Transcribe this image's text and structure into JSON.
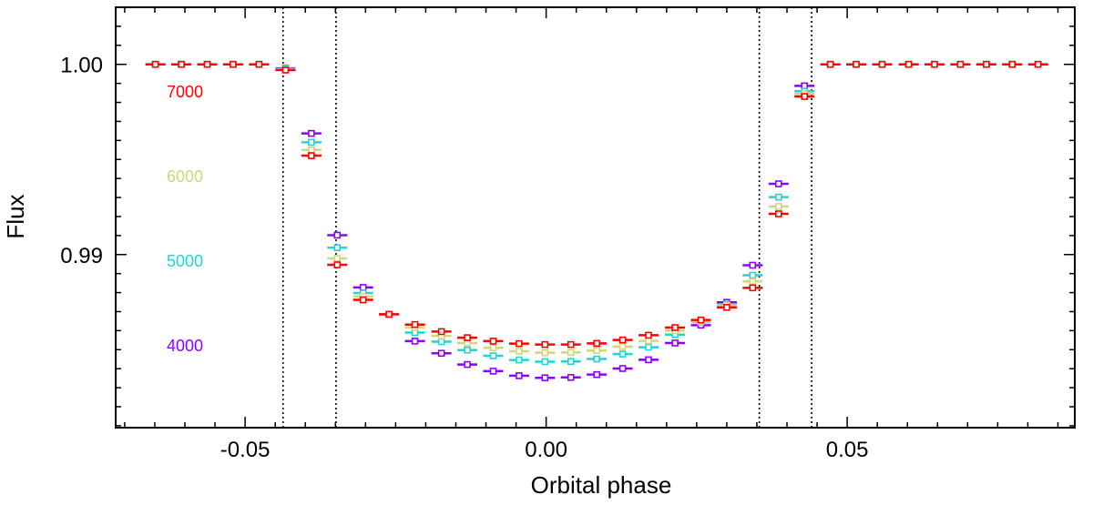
{
  "chart_data": {
    "type": "scatter",
    "title": "",
    "xlabel": "Orbital phase",
    "ylabel": "Flux",
    "xlim": [
      -0.0715,
      0.0878
    ],
    "ylim": [
      0.9809,
      1.003
    ],
    "xticks": [
      {
        "value": -0.05,
        "label": "-0.05"
      },
      {
        "value": 0.0,
        "label": "0.00"
      },
      {
        "value": 0.05,
        "label": "0.05"
      }
    ],
    "yticks": [
      {
        "value": 1.0,
        "label": "1.00"
      },
      {
        "value": 0.99,
        "label": "0.99"
      }
    ],
    "vlines": [
      -0.0437,
      -0.0349,
      0.0354,
      0.0441
    ],
    "x": [
      -0.0649,
      -0.0606,
      -0.0563,
      -0.052,
      -0.0477,
      -0.0433,
      -0.039,
      -0.0347,
      -0.0304,
      -0.0261,
      -0.0218,
      -0.0174,
      -0.0131,
      -0.0088,
      -0.0045,
      -0.0002,
      0.0041,
      0.0084,
      0.0127,
      0.017,
      0.0214,
      0.0257,
      0.03,
      0.0343,
      0.0386,
      0.0429,
      0.0472,
      0.0515,
      0.0558,
      0.0602,
      0.0645,
      0.0688,
      0.0731,
      0.0774,
      0.0817
    ],
    "series": [
      {
        "name": "4000",
        "color": "#8b00ff",
        "y": [
          1.0,
          1.0,
          1.0,
          1.0,
          1.0,
          0.99979,
          0.99637,
          0.99102,
          0.98827,
          0.98686,
          0.98545,
          0.98481,
          0.98422,
          0.98387,
          0.98363,
          0.98352,
          0.98354,
          0.98369,
          0.98401,
          0.98447,
          0.98535,
          0.98629,
          0.98749,
          0.98944,
          0.99372,
          0.99887,
          1.0,
          1.0,
          1.0,
          1.0,
          1.0,
          1.0,
          1.0,
          1.0,
          1.0
        ]
      },
      {
        "name": "5000",
        "color": "#22d3d3",
        "y": [
          1.0,
          1.0,
          1.0,
          1.0,
          1.0,
          0.99976,
          0.9959,
          0.99036,
          0.98798,
          0.98686,
          0.9859,
          0.98542,
          0.98498,
          0.98468,
          0.98446,
          0.98437,
          0.98438,
          0.98451,
          0.98477,
          0.98513,
          0.98579,
          0.98645,
          0.98739,
          0.98891,
          0.99302,
          0.99859,
          1.0,
          1.0,
          1.0,
          1.0,
          1.0,
          1.0,
          1.0,
          1.0,
          1.0
        ]
      },
      {
        "name": "6000",
        "color": "#d4d47a",
        "y": [
          1.0,
          1.0,
          1.0,
          1.0,
          1.0,
          0.99973,
          0.9955,
          0.9898,
          0.9878,
          0.98686,
          0.98617,
          0.98572,
          0.98535,
          0.9851,
          0.98492,
          0.98484,
          0.98485,
          0.98495,
          0.98516,
          0.98546,
          0.986,
          0.98648,
          0.98733,
          0.98859,
          0.99253,
          0.99845,
          1.0,
          1.0,
          1.0,
          1.0,
          1.0,
          1.0,
          1.0,
          1.0,
          1.0
        ]
      },
      {
        "name": "7000",
        "color": "#ff0000",
        "y": [
          1.0,
          1.0,
          1.0,
          1.0,
          1.0,
          0.9997,
          0.9952,
          0.98946,
          0.98762,
          0.98686,
          0.98632,
          0.98595,
          0.98563,
          0.98545,
          0.98532,
          0.98527,
          0.98527,
          0.98533,
          0.98551,
          0.98576,
          0.98616,
          0.98656,
          0.98722,
          0.98825,
          0.99214,
          0.99831,
          1.0,
          1.0,
          1.0,
          1.0,
          1.0,
          1.0,
          1.0,
          1.0,
          1.0
        ]
      }
    ],
    "legend": {
      "placement": "left",
      "entries": [
        {
          "label": "7000",
          "color": "#ff0000"
        },
        {
          "label": "6000",
          "color": "#d4d47a"
        },
        {
          "label": "5000",
          "color": "#22d3d3"
        },
        {
          "label": "4000",
          "color": "#8b00ff"
        }
      ]
    },
    "grid": false
  }
}
